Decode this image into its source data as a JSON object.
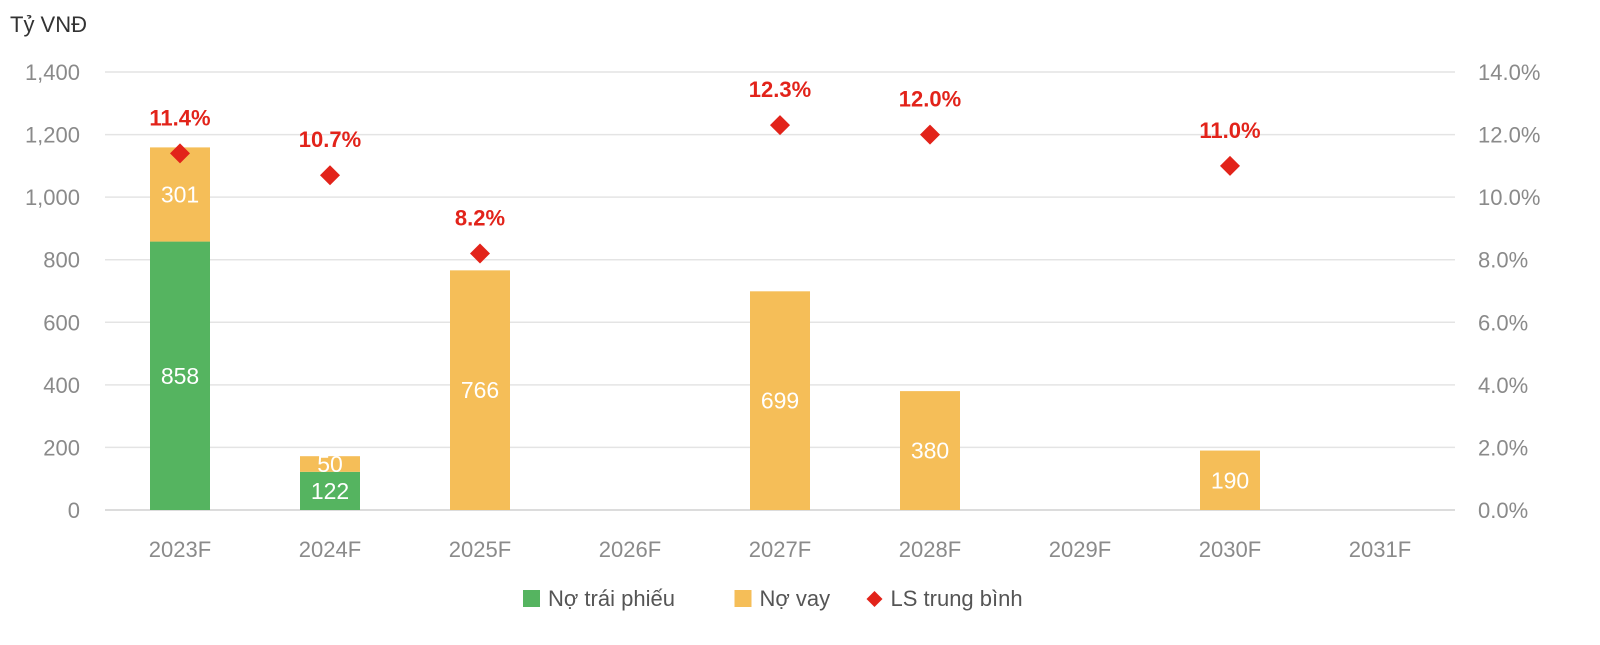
{
  "chart_data": {
    "type": "bar",
    "stacked": true,
    "y_unit_label": "Tỷ VNĐ",
    "categories": [
      "2023F",
      "2024F",
      "2025F",
      "2026F",
      "2027F",
      "2028F",
      "2029F",
      "2030F",
      "2031F"
    ],
    "series": [
      {
        "name": "Nợ trái phiếu",
        "kind": "bar",
        "color": "#55b460",
        "values": [
          858,
          122,
          null,
          null,
          null,
          null,
          null,
          null,
          null
        ],
        "labels": [
          "858",
          "122",
          "",
          "",
          "",
          "",
          "",
          "",
          ""
        ]
      },
      {
        "name": "Nợ vay",
        "kind": "bar",
        "color": "#f5be58",
        "values": [
          301,
          50,
          766,
          null,
          699,
          380,
          null,
          190,
          null
        ],
        "labels": [
          "301",
          "50",
          "766",
          "",
          "699",
          "380",
          "",
          "190",
          ""
        ]
      },
      {
        "name": "LS trung bình",
        "kind": "marker",
        "axis": "right",
        "color": "#e2231a",
        "values": [
          11.4,
          10.7,
          8.2,
          null,
          12.3,
          12.0,
          null,
          11.0,
          null
        ],
        "labels": [
          "11.4%",
          "10.7%",
          "8.2%",
          "",
          "12.3%",
          "12.0%",
          "",
          "11.0%",
          ""
        ]
      }
    ],
    "y_left": {
      "min": 0,
      "max": 1400,
      "step": 200,
      "tick_labels": [
        "0",
        "200",
        "400",
        "600",
        "800",
        "1,000",
        "1,200",
        "1,400"
      ]
    },
    "y_right": {
      "min": 0,
      "max": 14,
      "step": 2,
      "tick_labels": [
        "0.0%",
        "2.0%",
        "4.0%",
        "6.0%",
        "8.0%",
        "10.0%",
        "12.0%",
        "14.0%"
      ]
    },
    "grid": true,
    "legend_position": "bottom"
  }
}
